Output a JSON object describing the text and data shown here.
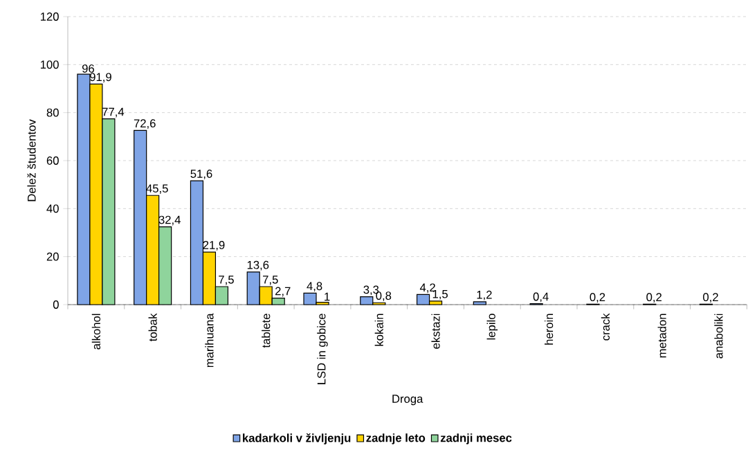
{
  "chart_data": {
    "type": "bar",
    "xlabel": "Droga",
    "ylabel": "Delež študentov",
    "categories": [
      "alkohol",
      "tobak",
      "marihuana",
      "tablete",
      "LSD in gobice",
      "kokain",
      "ekstazi",
      "lepilo",
      "heroin",
      "crack",
      "metadon",
      "anaboliki"
    ],
    "series": [
      {
        "name": "kadarkoli v življenju",
        "color": "#7fa4e6",
        "values": [
          96,
          72.6,
          51.6,
          13.6,
          4.8,
          3.3,
          4.2,
          1.2,
          0.4,
          0.2,
          0.2,
          0.2
        ],
        "value_labels": [
          "96",
          "72,6",
          "51,6",
          "13,6",
          "4,8",
          "3,3",
          "4,2",
          "1,2",
          "0,4",
          "0,2",
          "0,2",
          "0,2"
        ]
      },
      {
        "name": "zadnje leto",
        "color": "#ffd400",
        "values": [
          91.9,
          45.5,
          21.9,
          7.5,
          1,
          0.8,
          1.5,
          null,
          null,
          null,
          null,
          null
        ],
        "value_labels": [
          "91,9",
          "45,5",
          "21,9",
          "7,5",
          "1",
          "0,8",
          "1,5",
          null,
          null,
          null,
          null,
          null
        ]
      },
      {
        "name": "zadnji mesec",
        "color": "#8fd49c",
        "values": [
          77.4,
          32.4,
          7.5,
          2.7,
          null,
          null,
          null,
          null,
          null,
          null,
          null,
          null
        ],
        "value_labels": [
          "77,4",
          "32,4",
          "7,5",
          "2,7",
          null,
          null,
          null,
          null,
          null,
          null,
          null,
          null
        ]
      }
    ],
    "ylim": [
      0,
      120
    ],
    "yticks": [
      0,
      20,
      40,
      60,
      80,
      100,
      120
    ],
    "grid": "y",
    "legend": "bottom"
  }
}
